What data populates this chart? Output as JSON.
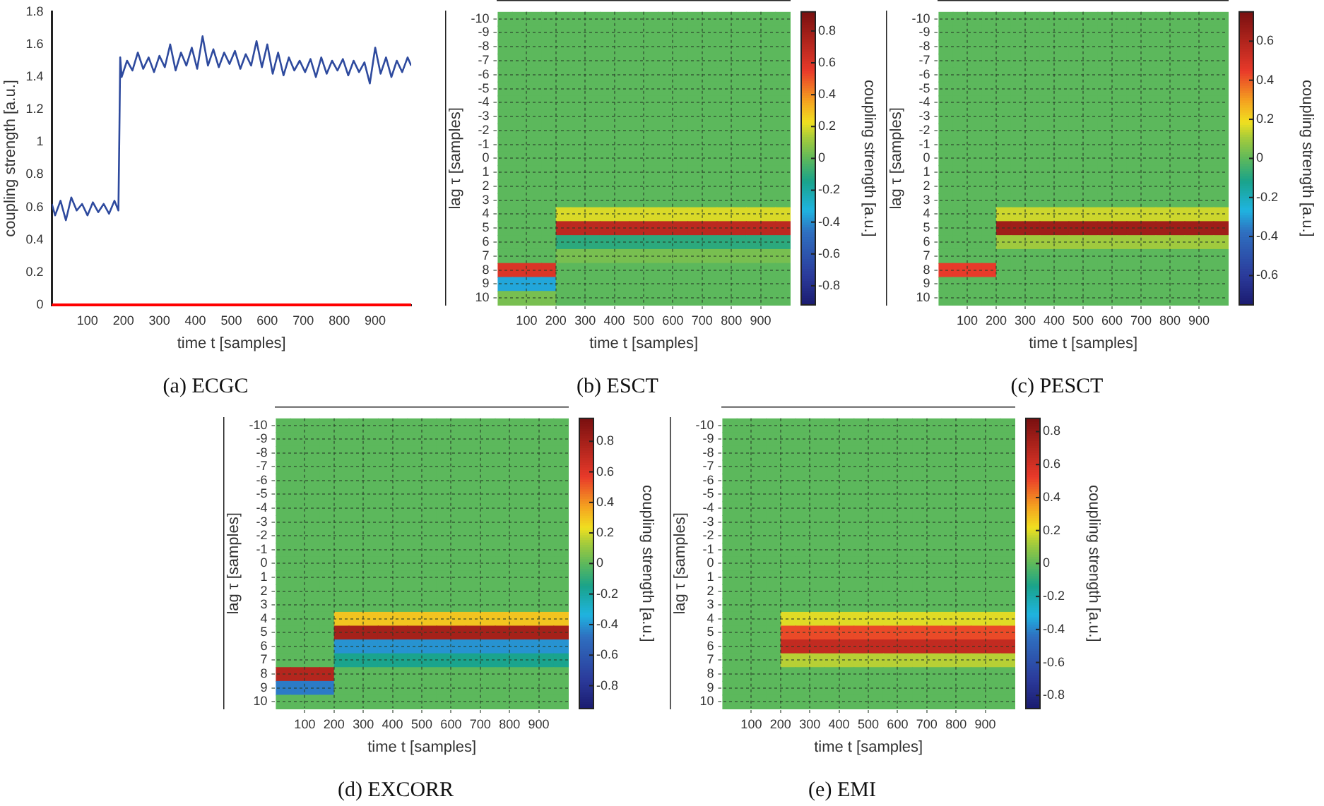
{
  "chart_data": [
    {
      "type": "line",
      "title": "(a) ECGC",
      "xlabel": "time t [samples]",
      "ylabel": "coupling strength [a.u.]",
      "xlim": [
        1,
        1000
      ],
      "xticks": [
        100,
        200,
        300,
        400,
        500,
        600,
        700,
        800,
        900
      ],
      "ylim": [
        0,
        1.8
      ],
      "yticks": [
        0,
        0.2,
        0.4,
        0.6,
        0.8,
        1,
        1.2,
        1.4,
        1.6,
        1.8
      ],
      "ref_lines": [
        {
          "axis": "y",
          "value": 0,
          "color": "#ff0000"
        }
      ],
      "x": [
        1,
        10,
        25,
        40,
        55,
        70,
        85,
        100,
        115,
        130,
        145,
        160,
        175,
        186,
        189,
        191,
        195,
        210,
        225,
        240,
        255,
        270,
        285,
        300,
        315,
        330,
        345,
        360,
        375,
        390,
        405,
        420,
        435,
        450,
        465,
        480,
        495,
        510,
        525,
        540,
        555,
        570,
        585,
        600,
        615,
        630,
        645,
        660,
        675,
        690,
        705,
        720,
        735,
        750,
        765,
        780,
        795,
        810,
        825,
        840,
        855,
        870,
        885,
        900,
        915,
        930,
        945,
        960,
        975,
        990,
        1000
      ],
      "series": [
        {
          "color": "#2e4a9e",
          "values": [
            0.62,
            0.55,
            0.64,
            0.52,
            0.66,
            0.58,
            0.62,
            0.55,
            0.63,
            0.57,
            0.62,
            0.56,
            0.64,
            0.58,
            1.12,
            1.52,
            1.4,
            1.5,
            1.44,
            1.55,
            1.45,
            1.52,
            1.43,
            1.53,
            1.46,
            1.6,
            1.44,
            1.55,
            1.47,
            1.58,
            1.45,
            1.65,
            1.47,
            1.57,
            1.46,
            1.55,
            1.48,
            1.56,
            1.45,
            1.54,
            1.47,
            1.62,
            1.46,
            1.6,
            1.42,
            1.55,
            1.41,
            1.52,
            1.44,
            1.5,
            1.43,
            1.51,
            1.4,
            1.52,
            1.42,
            1.5,
            1.44,
            1.51,
            1.41,
            1.5,
            1.43,
            1.49,
            1.36,
            1.58,
            1.42,
            1.52,
            1.4,
            1.5,
            1.43,
            1.52,
            1.47
          ]
        }
      ]
    },
    {
      "type": "heatmap",
      "title": "(b) ESCT",
      "xlabel": "time t [samples]",
      "ylabel": "lag τ [samples]",
      "clabel": "coupling strength [a.u.]",
      "grid": true,
      "xlim": [
        1,
        1000
      ],
      "xticks": [
        100,
        200,
        300,
        400,
        500,
        600,
        700,
        800,
        900
      ],
      "clim": [
        -0.92,
        0.92
      ],
      "cticks": [
        -0.8,
        -0.6,
        -0.4,
        -0.2,
        0,
        0.2,
        0.4,
        0.6,
        0.8
      ],
      "x": [
        25,
        75,
        125,
        175,
        225,
        275,
        325,
        375,
        425,
        475,
        525,
        575,
        625,
        675,
        725,
        775,
        825,
        875,
        925,
        975
      ],
      "y_categories": [
        "-10",
        "-9",
        "-8",
        "-7",
        "-6",
        "-5",
        "-4",
        "-3",
        "-2",
        "-1",
        "0",
        "1",
        "2",
        "3",
        "4",
        "5",
        "6",
        "7",
        "8",
        "9",
        "10"
      ],
      "cells": [
        [
          0,
          0,
          0,
          0,
          0,
          0,
          0,
          0,
          0,
          0,
          0,
          0,
          0,
          0,
          0,
          0,
          0,
          0,
          0,
          0
        ],
        [
          0,
          0,
          0,
          0,
          0,
          0,
          0,
          0,
          0,
          0,
          0,
          0,
          0,
          0,
          0,
          0,
          0,
          0,
          0,
          0
        ],
        [
          0,
          0,
          0,
          0,
          0,
          0,
          0,
          0,
          0,
          0,
          0,
          0,
          0,
          0,
          0,
          0,
          0,
          0,
          0,
          0
        ],
        [
          0,
          0,
          0,
          0,
          0,
          0,
          0,
          0,
          0,
          0,
          0,
          0,
          0,
          0,
          0,
          0,
          0,
          0,
          0,
          0
        ],
        [
          0,
          0,
          0,
          0,
          0,
          0,
          0,
          0,
          0,
          0,
          0,
          0,
          0,
          0,
          0,
          0,
          0,
          0,
          0,
          0
        ],
        [
          0,
          0,
          0,
          0,
          0,
          0,
          0,
          0,
          0,
          0,
          0,
          0,
          0,
          0,
          0,
          0,
          0,
          0,
          0,
          0
        ],
        [
          0,
          0,
          0,
          0,
          0,
          0,
          0,
          0,
          0,
          0,
          0,
          0,
          0,
          0,
          0,
          0,
          0,
          0,
          0,
          0
        ],
        [
          0,
          0,
          0,
          0,
          0,
          0,
          0,
          0,
          0,
          0,
          0,
          0,
          0,
          0,
          0,
          0,
          0,
          0,
          0,
          0
        ],
        [
          0,
          0,
          0,
          0,
          0,
          0,
          0,
          0,
          0,
          0,
          0,
          0,
          0,
          0,
          0,
          0,
          0,
          0,
          0,
          0
        ],
        [
          0,
          0,
          0,
          0,
          0,
          0,
          0,
          0,
          0,
          0,
          0,
          0,
          0,
          0,
          0,
          0,
          0,
          0,
          0,
          0
        ],
        [
          0,
          0,
          0,
          0,
          0,
          0,
          0,
          0,
          0,
          0,
          0,
          0,
          0,
          0,
          0,
          0,
          0,
          0,
          0,
          0
        ],
        [
          0,
          0,
          0,
          0,
          0,
          0,
          0,
          0,
          0,
          0,
          0,
          0,
          0,
          0,
          0,
          0,
          0,
          0,
          0,
          0
        ],
        [
          0,
          0,
          0,
          0,
          0,
          0,
          0,
          0,
          0,
          0,
          0,
          0,
          0,
          0,
          0,
          0,
          0,
          0,
          0,
          0
        ],
        [
          0,
          0,
          0,
          0,
          0,
          0,
          0,
          0,
          0,
          0,
          0,
          0,
          0,
          0,
          0,
          0,
          0,
          0,
          0,
          0
        ],
        [
          0,
          0,
          0,
          0,
          0.2,
          0.2,
          0.2,
          0.2,
          0.2,
          0.2,
          0.2,
          0.2,
          0.2,
          0.2,
          0.2,
          0.2,
          0.2,
          0.2,
          0.2,
          0.2
        ],
        [
          0,
          0,
          0,
          0,
          0.7,
          0.7,
          0.7,
          0.7,
          0.7,
          0.7,
          0.7,
          0.7,
          0.7,
          0.7,
          0.7,
          0.7,
          0.7,
          0.7,
          0.7,
          0.7
        ],
        [
          0,
          0,
          0,
          0,
          -0.1,
          -0.1,
          -0.1,
          -0.1,
          -0.1,
          -0.1,
          -0.1,
          -0.1,
          -0.1,
          -0.1,
          -0.1,
          -0.1,
          -0.1,
          -0.1,
          -0.1,
          -0.1
        ],
        [
          0,
          0,
          0,
          0,
          0.05,
          0.05,
          0.05,
          0.05,
          0.05,
          0.05,
          0.05,
          0.05,
          0.05,
          0.05,
          0.05,
          0.05,
          0.05,
          0.05,
          0.05,
          0.05
        ],
        [
          0.6,
          0.6,
          0.6,
          0.6,
          0,
          0,
          0,
          0,
          0,
          0,
          0,
          0,
          0,
          0,
          0,
          0,
          0,
          0,
          0,
          0
        ],
        [
          -0.35,
          -0.35,
          -0.35,
          -0.35,
          0,
          0,
          0,
          0,
          0,
          0,
          0,
          0,
          0,
          0,
          0,
          0,
          0,
          0,
          0,
          0
        ],
        [
          0.05,
          0.05,
          0.05,
          0.05,
          0,
          0,
          0,
          0,
          0,
          0,
          0,
          0,
          0,
          0,
          0,
          0,
          0,
          0,
          0,
          0
        ]
      ]
    },
    {
      "type": "heatmap",
      "title": "(c) PESCT",
      "xlabel": "time t [samples]",
      "ylabel": "lag τ [samples]",
      "clabel": "coupling strength [a.u.]",
      "grid": true,
      "xlim": [
        1,
        1000
      ],
      "xticks": [
        100,
        200,
        300,
        400,
        500,
        600,
        700,
        800,
        900
      ],
      "clim": [
        -0.75,
        0.75
      ],
      "cticks": [
        -0.6,
        -0.4,
        -0.2,
        0,
        0.2,
        0.4,
        0.6
      ],
      "x": [
        25,
        75,
        125,
        175,
        225,
        275,
        325,
        375,
        425,
        475,
        525,
        575,
        625,
        675,
        725,
        775,
        825,
        875,
        925,
        975
      ],
      "y_categories": [
        "-10",
        "-9",
        "-8",
        "-7",
        "-6",
        "-5",
        "-4",
        "-3",
        "-2",
        "-1",
        "0",
        "1",
        "2",
        "3",
        "4",
        "5",
        "6",
        "7",
        "8",
        "9",
        "10"
      ],
      "cells": [
        [
          0,
          0,
          0,
          0,
          0,
          0,
          0,
          0,
          0,
          0,
          0,
          0,
          0,
          0,
          0,
          0,
          0,
          0,
          0,
          0
        ],
        [
          0,
          0,
          0,
          0,
          0,
          0,
          0,
          0,
          0,
          0,
          0,
          0,
          0,
          0,
          0,
          0,
          0,
          0,
          0,
          0
        ],
        [
          0,
          0,
          0,
          0,
          0,
          0,
          0,
          0,
          0,
          0,
          0,
          0,
          0,
          0,
          0,
          0,
          0,
          0,
          0,
          0
        ],
        [
          0,
          0,
          0,
          0,
          0,
          0,
          0,
          0,
          0,
          0,
          0,
          0,
          0,
          0,
          0,
          0,
          0,
          0,
          0,
          0
        ],
        [
          0,
          0,
          0,
          0,
          0,
          0,
          0,
          0,
          0,
          0,
          0,
          0,
          0,
          0,
          0,
          0,
          0,
          0,
          0,
          0
        ],
        [
          0,
          0,
          0,
          0,
          0,
          0,
          0,
          0,
          0,
          0,
          0,
          0,
          0,
          0,
          0,
          0,
          0,
          0,
          0,
          0
        ],
        [
          0,
          0,
          0,
          0,
          0,
          0,
          0,
          0,
          0,
          0,
          0,
          0,
          0,
          0,
          0,
          0,
          0,
          0,
          0,
          0
        ],
        [
          0,
          0,
          0,
          0,
          0,
          0,
          0,
          0,
          0,
          0,
          0,
          0,
          0,
          0,
          0,
          0,
          0,
          0,
          0,
          0
        ],
        [
          0,
          0,
          0,
          0,
          0,
          0,
          0,
          0,
          0,
          0,
          0,
          0,
          0,
          0,
          0,
          0,
          0,
          0,
          0,
          0
        ],
        [
          0,
          0,
          0,
          0,
          0,
          0,
          0,
          0,
          0,
          0,
          0,
          0,
          0,
          0,
          0,
          0,
          0,
          0,
          0,
          0
        ],
        [
          0,
          0,
          0,
          0,
          0,
          0,
          0,
          0,
          0,
          0,
          0,
          0,
          0,
          0,
          0,
          0,
          0,
          0,
          0,
          0
        ],
        [
          0,
          0,
          0,
          0,
          0,
          0,
          0,
          0,
          0,
          0,
          0,
          0,
          0,
          0,
          0,
          0,
          0,
          0,
          0,
          0
        ],
        [
          0,
          0,
          0,
          0,
          0,
          0,
          0,
          0,
          0,
          0,
          0,
          0,
          0,
          0,
          0,
          0,
          0,
          0,
          0,
          0
        ],
        [
          0,
          0,
          0,
          0,
          0,
          0,
          0,
          0,
          0,
          0,
          0,
          0,
          0,
          0,
          0,
          0,
          0,
          0,
          0,
          0
        ],
        [
          0,
          0,
          0,
          0,
          0.15,
          0.15,
          0.15,
          0.15,
          0.15,
          0.15,
          0.15,
          0.15,
          0.15,
          0.15,
          0.15,
          0.15,
          0.15,
          0.15,
          0.15,
          0.15
        ],
        [
          0,
          0,
          0,
          0,
          0.65,
          0.65,
          0.65,
          0.65,
          0.65,
          0.65,
          0.65,
          0.65,
          0.65,
          0.65,
          0.65,
          0.65,
          0.65,
          0.65,
          0.65,
          0.65
        ],
        [
          0,
          0,
          0,
          0,
          0.1,
          0.1,
          0.1,
          0.1,
          0.1,
          0.1,
          0.1,
          0.1,
          0.1,
          0.1,
          0.1,
          0.1,
          0.1,
          0.1,
          0.1,
          0.1
        ],
        [
          0,
          0,
          0,
          0,
          0,
          0,
          0,
          0,
          0,
          0,
          0,
          0,
          0,
          0,
          0,
          0,
          0,
          0,
          0,
          0
        ],
        [
          0.45,
          0.45,
          0.45,
          0.45,
          0,
          0,
          0,
          0,
          0,
          0,
          0,
          0,
          0,
          0,
          0,
          0,
          0,
          0,
          0,
          0
        ],
        [
          0,
          0,
          0,
          0,
          0,
          0,
          0,
          0,
          0,
          0,
          0,
          0,
          0,
          0,
          0,
          0,
          0,
          0,
          0,
          0
        ],
        [
          0,
          0,
          0,
          0,
          0,
          0,
          0,
          0,
          0,
          0,
          0,
          0,
          0,
          0,
          0,
          0,
          0,
          0,
          0,
          0
        ]
      ]
    },
    {
      "type": "heatmap",
      "title": "(d) EXCORR",
      "xlabel": "time t [samples]",
      "ylabel": "lag τ [samples]",
      "clabel": "coupling strength [a.u.]",
      "grid": true,
      "xlim": [
        1,
        1000
      ],
      "xticks": [
        100,
        200,
        300,
        400,
        500,
        600,
        700,
        800,
        900
      ],
      "clim": [
        -0.95,
        0.95
      ],
      "cticks": [
        -0.8,
        -0.6,
        -0.4,
        -0.2,
        0,
        0.2,
        0.4,
        0.6,
        0.8
      ],
      "x": [
        25,
        75,
        125,
        175,
        225,
        275,
        325,
        375,
        425,
        475,
        525,
        575,
        625,
        675,
        725,
        775,
        825,
        875,
        925,
        975
      ],
      "y_categories": [
        "-10",
        "-9",
        "-8",
        "-7",
        "-6",
        "-5",
        "-4",
        "-3",
        "-2",
        "-1",
        "0",
        "1",
        "2",
        "3",
        "4",
        "5",
        "6",
        "7",
        "8",
        "9",
        "10"
      ],
      "cells": [
        [
          0,
          0,
          0,
          0,
          0,
          0,
          0,
          0,
          0,
          0,
          0,
          0,
          0,
          0,
          0,
          0,
          0,
          0,
          0,
          0
        ],
        [
          0,
          0,
          0,
          0,
          0,
          0,
          0,
          0,
          0,
          0,
          0,
          0,
          0,
          0,
          0,
          0,
          0,
          0,
          0,
          0
        ],
        [
          0,
          0,
          0,
          0,
          0,
          0,
          0,
          0,
          0,
          0,
          0,
          0,
          0,
          0,
          0,
          0,
          0,
          0,
          0,
          0
        ],
        [
          0,
          0,
          0,
          0,
          0,
          0,
          0,
          0,
          0,
          0,
          0,
          0,
          0,
          0,
          0,
          0,
          0,
          0,
          0,
          0
        ],
        [
          0,
          0,
          0,
          0,
          0,
          0,
          0,
          0,
          0,
          0,
          0,
          0,
          0,
          0,
          0,
          0,
          0,
          0,
          0,
          0
        ],
        [
          0,
          0,
          0,
          0,
          0,
          0,
          0,
          0,
          0,
          0,
          0,
          0,
          0,
          0,
          0,
          0,
          0,
          0,
          0,
          0
        ],
        [
          0,
          0,
          0,
          0,
          0,
          0,
          0,
          0,
          0,
          0,
          0,
          0,
          0,
          0,
          0,
          0,
          0,
          0,
          0,
          0
        ],
        [
          0,
          0,
          0,
          0,
          0,
          0,
          0,
          0,
          0,
          0,
          0,
          0,
          0,
          0,
          0,
          0,
          0,
          0,
          0,
          0
        ],
        [
          0,
          0,
          0,
          0,
          0,
          0,
          0,
          0,
          0,
          0,
          0,
          0,
          0,
          0,
          0,
          0,
          0,
          0,
          0,
          0
        ],
        [
          0,
          0,
          0,
          0,
          0,
          0,
          0,
          0,
          0,
          0,
          0,
          0,
          0,
          0,
          0,
          0,
          0,
          0,
          0,
          0
        ],
        [
          0,
          0,
          0,
          0,
          0,
          0,
          0,
          0,
          0,
          0,
          0,
          0,
          0,
          0,
          0,
          0,
          0,
          0,
          0,
          0
        ],
        [
          0,
          0,
          0,
          0,
          0,
          0,
          0,
          0,
          0,
          0,
          0,
          0,
          0,
          0,
          0,
          0,
          0,
          0,
          0,
          0
        ],
        [
          0,
          0,
          0,
          0,
          0,
          0,
          0,
          0,
          0,
          0,
          0,
          0,
          0,
          0,
          0,
          0,
          0,
          0,
          0,
          0
        ],
        [
          0,
          0,
          0,
          0,
          0,
          0,
          0,
          0,
          0,
          0,
          0,
          0,
          0,
          0,
          0,
          0,
          0,
          0,
          0,
          0
        ],
        [
          0,
          0,
          0,
          0,
          0.3,
          0.3,
          0.3,
          0.3,
          0.3,
          0.3,
          0.3,
          0.3,
          0.3,
          0.3,
          0.3,
          0.3,
          0.3,
          0.3,
          0.3,
          0.3
        ],
        [
          0,
          0,
          0,
          0,
          0.8,
          0.8,
          0.8,
          0.8,
          0.8,
          0.8,
          0.8,
          0.8,
          0.8,
          0.8,
          0.8,
          0.8,
          0.8,
          0.8,
          0.8,
          0.8
        ],
        [
          0,
          0,
          0,
          0,
          -0.4,
          -0.4,
          -0.4,
          -0.4,
          -0.4,
          -0.4,
          -0.4,
          -0.4,
          -0.4,
          -0.4,
          -0.4,
          -0.4,
          -0.4,
          -0.4,
          -0.4,
          -0.4
        ],
        [
          0,
          0,
          0,
          0,
          -0.15,
          -0.15,
          -0.15,
          -0.15,
          -0.15,
          -0.15,
          -0.15,
          -0.15,
          -0.15,
          -0.15,
          -0.15,
          -0.15,
          -0.15,
          -0.15,
          -0.15,
          -0.15
        ],
        [
          0.75,
          0.75,
          0.75,
          0.75,
          0,
          0,
          0,
          0,
          0,
          0,
          0,
          0,
          0,
          0,
          0,
          0,
          0,
          0,
          0,
          0
        ],
        [
          -0.45,
          -0.45,
          -0.45,
          -0.45,
          0,
          0,
          0,
          0,
          0,
          0,
          0,
          0,
          0,
          0,
          0,
          0,
          0,
          0,
          0,
          0
        ],
        [
          0,
          0,
          0,
          0,
          0,
          0,
          0,
          0,
          0,
          0,
          0,
          0,
          0,
          0,
          0,
          0,
          0,
          0,
          0,
          0
        ]
      ]
    },
    {
      "type": "heatmap",
      "title": "(e) EMI",
      "xlabel": "time t [samples]",
      "ylabel": "lag τ [samples]",
      "clabel": "coupling strength [a.u.]",
      "grid": true,
      "xlim": [
        1,
        1000
      ],
      "xticks": [
        100,
        200,
        300,
        400,
        500,
        600,
        700,
        800,
        900
      ],
      "clim": [
        -0.88,
        0.88
      ],
      "cticks": [
        -0.8,
        -0.6,
        -0.4,
        -0.2,
        0,
        0.2,
        0.4,
        0.6,
        0.8
      ],
      "x": [
        25,
        75,
        125,
        175,
        225,
        275,
        325,
        375,
        425,
        475,
        525,
        575,
        625,
        675,
        725,
        775,
        825,
        875,
        925,
        975
      ],
      "y_categories": [
        "-10",
        "-9",
        "-8",
        "-7",
        "-6",
        "-5",
        "-4",
        "-3",
        "-2",
        "-1",
        "0",
        "1",
        "2",
        "3",
        "4",
        "5",
        "6",
        "7",
        "8",
        "9",
        "10"
      ],
      "cells": [
        [
          0,
          0,
          0,
          0,
          0,
          0,
          0,
          0,
          0,
          0,
          0,
          0,
          0,
          0,
          0,
          0,
          0,
          0,
          0,
          0
        ],
        [
          0,
          0,
          0,
          0,
          0,
          0,
          0,
          0,
          0,
          0,
          0,
          0,
          0,
          0,
          0,
          0,
          0,
          0,
          0,
          0
        ],
        [
          0,
          0,
          0,
          0,
          0,
          0,
          0,
          0,
          0,
          0,
          0,
          0,
          0,
          0,
          0,
          0,
          0,
          0,
          0,
          0
        ],
        [
          0,
          0,
          0,
          0,
          0,
          0,
          0,
          0,
          0,
          0,
          0,
          0,
          0,
          0,
          0,
          0,
          0,
          0,
          0,
          0
        ],
        [
          0,
          0,
          0,
          0,
          0,
          0,
          0,
          0,
          0,
          0,
          0,
          0,
          0,
          0,
          0,
          0,
          0,
          0,
          0,
          0
        ],
        [
          0,
          0,
          0,
          0,
          0,
          0,
          0,
          0,
          0,
          0,
          0,
          0,
          0,
          0,
          0,
          0,
          0,
          0,
          0,
          0
        ],
        [
          0,
          0,
          0,
          0,
          0,
          0,
          0,
          0,
          0,
          0,
          0,
          0,
          0,
          0,
          0,
          0,
          0,
          0,
          0,
          0
        ],
        [
          0,
          0,
          0,
          0,
          0,
          0,
          0,
          0,
          0,
          0,
          0,
          0,
          0,
          0,
          0,
          0,
          0,
          0,
          0,
          0
        ],
        [
          0,
          0,
          0,
          0,
          0,
          0,
          0,
          0,
          0,
          0,
          0,
          0,
          0,
          0,
          0,
          0,
          0,
          0,
          0,
          0
        ],
        [
          0,
          0,
          0,
          0,
          0,
          0,
          0,
          0,
          0,
          0,
          0,
          0,
          0,
          0,
          0,
          0,
          0,
          0,
          0,
          0
        ],
        [
          0,
          0,
          0,
          0,
          0,
          0,
          0,
          0,
          0,
          0,
          0,
          0,
          0,
          0,
          0,
          0,
          0,
          0,
          0,
          0
        ],
        [
          0,
          0,
          0,
          0,
          0,
          0,
          0,
          0,
          0,
          0,
          0,
          0,
          0,
          0,
          0,
          0,
          0,
          0,
          0,
          0
        ],
        [
          0,
          0,
          0,
          0,
          0,
          0,
          0,
          0,
          0,
          0,
          0,
          0,
          0,
          0,
          0,
          0,
          0,
          0,
          0,
          0
        ],
        [
          0,
          0,
          0,
          0,
          0,
          0,
          0,
          0,
          0,
          0,
          0,
          0,
          0,
          0,
          0,
          0,
          0,
          0,
          0,
          0
        ],
        [
          0,
          0,
          0,
          0,
          0.2,
          0.2,
          0.2,
          0.2,
          0.2,
          0.2,
          0.2,
          0.2,
          0.2,
          0.2,
          0.2,
          0.2,
          0.2,
          0.2,
          0.2,
          0.2
        ],
        [
          0,
          0,
          0,
          0,
          0.5,
          0.5,
          0.5,
          0.5,
          0.5,
          0.5,
          0.5,
          0.5,
          0.5,
          0.5,
          0.5,
          0.5,
          0.5,
          0.5,
          0.5,
          0.5
        ],
        [
          0,
          0,
          0,
          0,
          0.65,
          0.65,
          0.65,
          0.65,
          0.65,
          0.65,
          0.65,
          0.65,
          0.65,
          0.65,
          0.65,
          0.65,
          0.65,
          0.65,
          0.65,
          0.65
        ],
        [
          0,
          0,
          0,
          0,
          0.15,
          0.15,
          0.15,
          0.15,
          0.15,
          0.15,
          0.15,
          0.15,
          0.15,
          0.15,
          0.15,
          0.15,
          0.15,
          0.15,
          0.15,
          0.15
        ],
        [
          0,
          0,
          0,
          0,
          0,
          0,
          0,
          0,
          0,
          0,
          0,
          0,
          0,
          0,
          0,
          0,
          0,
          0,
          0,
          0
        ],
        [
          0,
          0,
          0,
          0,
          0,
          0,
          0,
          0,
          0,
          0,
          0,
          0,
          0,
          0,
          0,
          0,
          0,
          0,
          0,
          0
        ],
        [
          0,
          0,
          0,
          0,
          0,
          0,
          0,
          0,
          0,
          0,
          0,
          0,
          0,
          0,
          0,
          0,
          0,
          0,
          0,
          0
        ]
      ]
    }
  ]
}
